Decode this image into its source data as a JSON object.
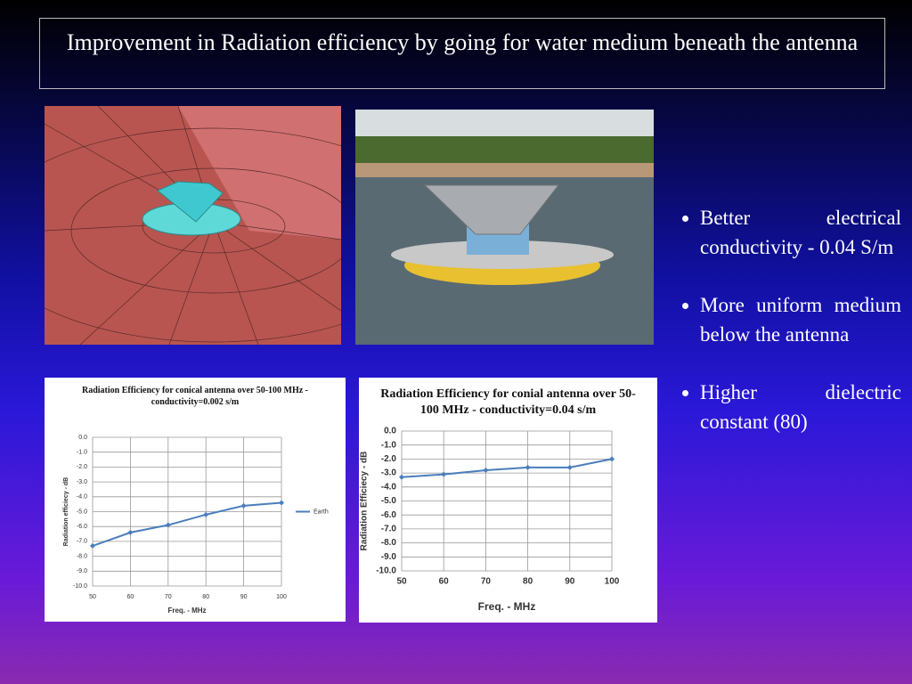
{
  "header": {
    "title": "Improvement in Radiation efficiency by going for water medium beneath the antenna"
  },
  "bullets": [
    "Better electrical conductivity - 0.04 S/m",
    "More uniform medium below the antenna",
    "Higher dielectric constant (80)"
  ],
  "chart_data": [
    {
      "type": "line",
      "title": "Radiation Efficiency for conical antenna over 50-100 MHz - conductivity=0.002  s/m",
      "x_label": "Freq. - MHz",
      "y_label": "Radiation efficiecy - dB",
      "x": [
        50,
        60,
        70,
        80,
        90,
        100
      ],
      "series": [
        {
          "name": "Earth",
          "color": "#4a7ebb",
          "values": [
            -7.3,
            -6.4,
            -5.9,
            -5.2,
            -4.6,
            -4.4
          ]
        }
      ],
      "xlim": [
        50,
        100
      ],
      "xticks": [
        50,
        60,
        70,
        80,
        90,
        100
      ],
      "ylim": [
        -10,
        0
      ],
      "yticks": [
        {
          "value": 0,
          "label": "0.0"
        },
        {
          "value": -1,
          "label": "-1.0"
        },
        {
          "value": -2,
          "label": "-2.0"
        },
        {
          "value": -3,
          "label": "-3.0"
        },
        {
          "value": -4,
          "label": "-4.0"
        },
        {
          "value": -5,
          "label": "-5.0"
        },
        {
          "value": -6,
          "label": "-6.0"
        },
        {
          "value": -7,
          "label": "-7.0"
        },
        {
          "value": -8,
          "label": "-8.0"
        },
        {
          "value": -9,
          "label": "-9.0"
        },
        {
          "value": -10,
          "label": "-10.0"
        }
      ],
      "grid": true,
      "legend": "right"
    },
    {
      "type": "line",
      "title": "Radiation Efficiency for conial antenna over 50-100 MHz - conductivity=0.04  s/m",
      "x_label": "Freq. - MHz",
      "y_label": "Radiation Efficiecy - dB",
      "x": [
        50,
        60,
        70,
        80,
        90,
        100
      ],
      "values": [
        -3.3,
        -3.1,
        -2.8,
        -2.6,
        -2.6,
        -2.0
      ],
      "color": "#4a7ebb",
      "xlim": [
        50,
        100
      ],
      "xticks": [
        50,
        60,
        70,
        80,
        90,
        100
      ],
      "ylim": [
        -10,
        0
      ],
      "yticks": [
        {
          "value": 0,
          "label": "0.0"
        },
        {
          "value": -1,
          "label": "-1.0"
        },
        {
          "value": -2,
          "label": "-2.0"
        },
        {
          "value": -3,
          "label": "-3.0"
        },
        {
          "value": -4,
          "label": "-4.0"
        },
        {
          "value": -5,
          "label": "-5.0"
        },
        {
          "value": -6,
          "label": "-6.0"
        },
        {
          "value": -7,
          "label": "-7.0"
        },
        {
          "value": -8,
          "label": "-8.0"
        },
        {
          "value": -9,
          "label": "-9.0"
        },
        {
          "value": -10,
          "label": "-10.0"
        }
      ],
      "grid": true
    }
  ]
}
